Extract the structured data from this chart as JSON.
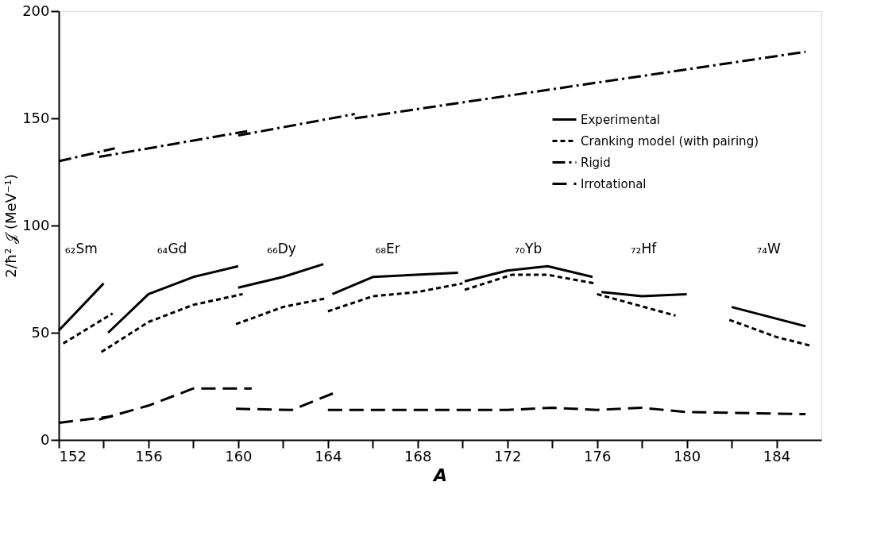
{
  "chart_data": {
    "type": "line",
    "xlabel": "A",
    "ylabel": "2/ħ² 𝒥 (MeV⁻¹)",
    "xlim": [
      152,
      186
    ],
    "ylim": [
      0,
      200
    ],
    "xticks": [
      152,
      {
        "value": 154,
        "label": null
      },
      156,
      {
        "value": 158,
        "label": null
      },
      160,
      {
        "value": 162,
        "label": null
      },
      164,
      {
        "value": 166,
        "label": null
      },
      168,
      {
        "value": 170,
        "label": null
      },
      172,
      {
        "value": 174,
        "label": null
      },
      176,
      {
        "value": 178,
        "label": null
      },
      180,
      {
        "value": 182,
        "label": null
      },
      184
    ],
    "yticks": [
      0,
      50,
      100,
      150,
      200
    ],
    "grid": false,
    "legend": "right",
    "marker": "none",
    "series": [
      {
        "name": "Experimental",
        "color": "#000000",
        "line_style": "solid",
        "x": [
          152,
          154
        ],
        "values": [
          51,
          73
        ]
      },
      {
        "color": "#000000",
        "line_style": "solid",
        "x": [
          154.2,
          156,
          158,
          160
        ],
        "values": [
          50,
          68,
          76,
          81
        ]
      },
      {
        "color": "#000000",
        "line_style": "solid",
        "x": [
          160,
          162,
          163.8
        ],
        "values": [
          71,
          76,
          82
        ]
      },
      {
        "color": "#000000",
        "line_style": "solid",
        "x": [
          164.2,
          166,
          169.8
        ],
        "values": [
          68,
          76,
          78
        ]
      },
      {
        "color": "#000000",
        "line_style": "solid",
        "x": [
          170.1,
          172,
          173.8,
          175.8
        ],
        "values": [
          74,
          79,
          81,
          76
        ]
      },
      {
        "color": "#000000",
        "line_style": "solid",
        "x": [
          176.2,
          178,
          180
        ],
        "values": [
          69,
          67,
          68
        ]
      },
      {
        "color": "#000000",
        "line_style": "solid",
        "x": [
          182,
          185.3
        ],
        "values": [
          62,
          53
        ]
      },
      {
        "name": "Cranking model (with pairing)",
        "color": "#000000",
        "line_style": "dashed",
        "x": [
          152.2,
          154.4
        ],
        "values": [
          45,
          59
        ]
      },
      {
        "color": "#000000",
        "line_style": "dashed",
        "x": [
          153.9,
          156,
          158,
          160.2
        ],
        "values": [
          41,
          55,
          63,
          68
        ]
      },
      {
        "color": "#000000",
        "line_style": "dashed",
        "x": [
          159.9,
          162,
          163.9
        ],
        "values": [
          54,
          62,
          66
        ]
      },
      {
        "color": "#000000",
        "line_style": "dashed",
        "x": [
          164,
          166,
          168,
          170
        ],
        "values": [
          60,
          67,
          69,
          73
        ]
      },
      {
        "color": "#000000",
        "line_style": "dashed",
        "x": [
          170.1,
          172.2,
          173.8,
          175.9
        ],
        "values": [
          70,
          77,
          77,
          73
        ]
      },
      {
        "color": "#000000",
        "line_style": "dashed",
        "x": [
          176,
          179.5
        ],
        "values": [
          68,
          58
        ]
      },
      {
        "color": "#000000",
        "line_style": "dashed",
        "x": [
          181.9,
          184,
          185.5
        ],
        "values": [
          56,
          48,
          44
        ]
      },
      {
        "name": "Rigid",
        "color": "#000000",
        "line_style": "dashdot",
        "x": [
          152,
          154.5
        ],
        "values": [
          130,
          136
        ]
      },
      {
        "color": "#000000",
        "line_style": "dashdot",
        "x": [
          153.8,
          160.4
        ],
        "values": [
          132,
          144
        ]
      },
      {
        "color": "#000000",
        "line_style": "dashdot",
        "x": [
          160,
          165.2
        ],
        "values": [
          142,
          152
        ]
      },
      {
        "color": "#000000",
        "line_style": "dashdot",
        "x": [
          165.2,
          185.3
        ],
        "values": [
          150,
          181
        ]
      },
      {
        "name": "Irrotational",
        "color": "#000000",
        "line_style": "longdash",
        "x": [
          152,
          154.4
        ],
        "values": [
          8,
          11
        ]
      },
      {
        "color": "#000000",
        "line_style": "longdash",
        "x": [
          153.8,
          156,
          158,
          160.6
        ],
        "values": [
          9.5,
          16,
          24,
          24
        ]
      },
      {
        "color": "#000000",
        "line_style": "longdash",
        "x": [
          159.9,
          162.4,
          164.3
        ],
        "values": [
          14.5,
          14,
          22
        ]
      },
      {
        "color": "#000000",
        "line_style": "longdash",
        "x": [
          164,
          172,
          174,
          176,
          178,
          180,
          185.3
        ],
        "values": [
          14,
          14,
          15,
          14,
          15,
          13,
          12
        ]
      }
    ],
    "annotations": [
      "₆₂Sm",
      "₆₄Gd",
      "₆₆Dy",
      "₆₈Er",
      "₇₀Yb",
      "₇₂Hf",
      "₇₄W"
    ]
  }
}
